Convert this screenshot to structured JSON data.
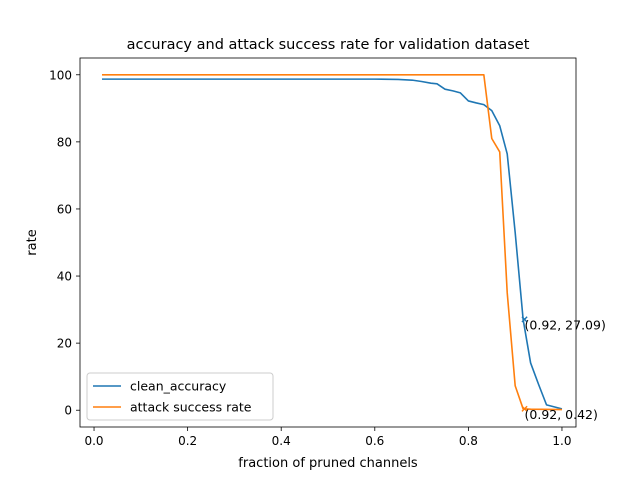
{
  "chart_data": {
    "type": "line",
    "title": "accuracy and attack success rate for validation dataset",
    "xlabel": "fraction of pruned channels",
    "ylabel": "rate",
    "xlim": [
      -0.03,
      1.03
    ],
    "ylim": [
      -5,
      105
    ],
    "xticks": [
      0.0,
      0.2,
      0.4,
      0.6,
      0.8,
      1.0
    ],
    "xtick_labels": [
      "0.0",
      "0.2",
      "0.4",
      "0.6",
      "0.8",
      "1.0"
    ],
    "yticks": [
      0,
      20,
      40,
      60,
      80,
      100
    ],
    "ytick_labels": [
      "0",
      "20",
      "40",
      "60",
      "80",
      "100"
    ],
    "grid": false,
    "legend_position": "lower-left",
    "series": [
      {
        "name": "clean_accuracy",
        "color": "#1f77b4",
        "x": [
          0.017,
          0.1,
          0.2,
          0.3,
          0.4,
          0.5,
          0.6,
          0.65,
          0.68,
          0.7,
          0.72,
          0.733,
          0.75,
          0.767,
          0.783,
          0.8,
          0.817,
          0.833,
          0.85,
          0.867,
          0.883,
          0.9,
          0.917,
          0.933,
          0.95,
          0.967,
          1.0
        ],
        "y": [
          98.7,
          98.7,
          98.7,
          98.7,
          98.7,
          98.7,
          98.7,
          98.6,
          98.4,
          98.0,
          97.5,
          97.3,
          95.7,
          95.2,
          94.6,
          92.2,
          91.6,
          91.1,
          89.3,
          84.8,
          76.4,
          53.0,
          27.09,
          14.1,
          7.7,
          1.6,
          0.4
        ]
      },
      {
        "name": "attack success rate",
        "color": "#ff7f0e",
        "x": [
          0.017,
          0.1,
          0.2,
          0.3,
          0.4,
          0.5,
          0.6,
          0.7,
          0.8,
          0.833,
          0.85,
          0.867,
          0.883,
          0.9,
          0.917,
          0.933,
          1.0
        ],
        "y": [
          100.0,
          100.0,
          100.0,
          100.0,
          100.0,
          100.0,
          100.0,
          100.0,
          100.0,
          100.0,
          81.0,
          77.0,
          35.0,
          7.3,
          0.42,
          0.3,
          0.2
        ]
      }
    ],
    "markers": [
      {
        "x": 0.92,
        "y": 27.09,
        "label": "(0.92, 27.09)",
        "color": "#1f77b4",
        "label_color": "#000000"
      },
      {
        "x": 0.92,
        "y": 0.42,
        "label": "(0.92, 0.42)",
        "color": "#ff7f0e",
        "label_color": "#000000"
      }
    ]
  }
}
